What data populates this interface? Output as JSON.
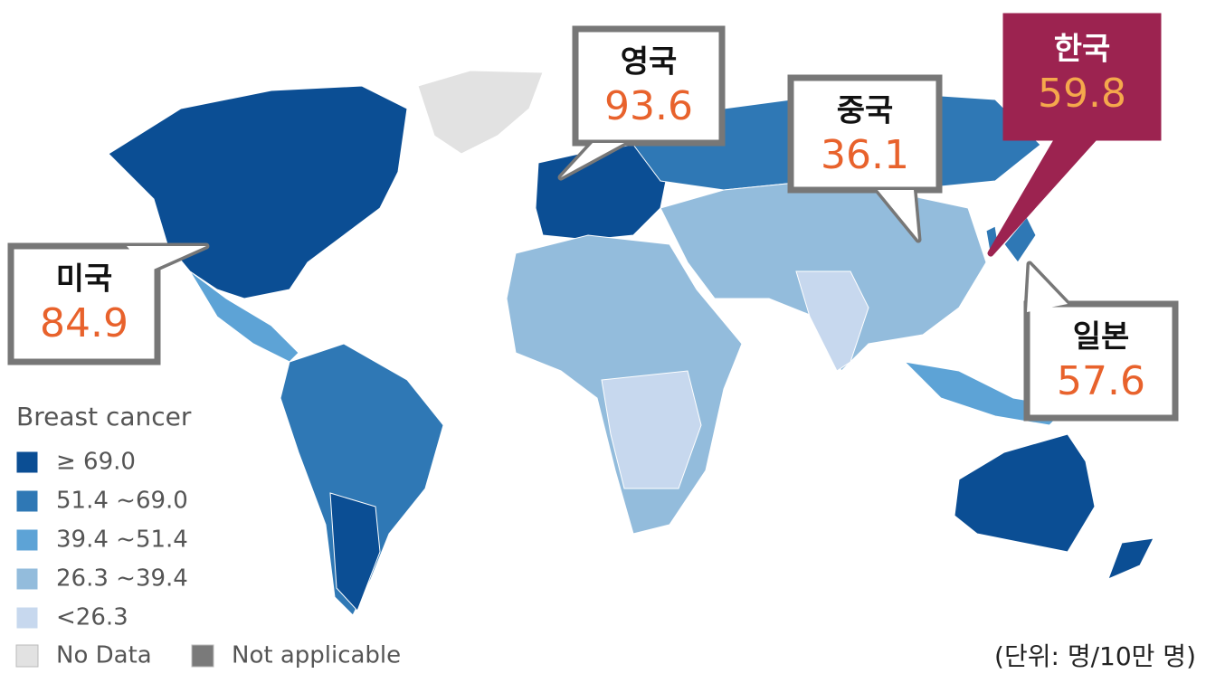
{
  "callouts": [
    {
      "country": "미국",
      "value": 84.9
    },
    {
      "country": "영국",
      "value": 93.6
    },
    {
      "country": "중국",
      "value": 36.1
    },
    {
      "country": "한국",
      "value": 59.8
    },
    {
      "country": "일본",
      "value": 57.6
    }
  ],
  "legend": {
    "title": "Breast cancer",
    "items": [
      {
        "label": "≥ 69.0",
        "color": "#0b4e94"
      },
      {
        "label": "51.4 ~69.0",
        "color": "#2f78b5"
      },
      {
        "label": "39.4 ~51.4",
        "color": "#5da3d6"
      },
      {
        "label": "26.3 ~39.4",
        "color": "#93bcdc"
      },
      {
        "label": "<26.3",
        "color": "#c7d8ee"
      }
    ],
    "other": [
      {
        "label": "No Data",
        "color": "#e2e2e2"
      },
      {
        "label": "Not applicable",
        "color": "#7a7a7a"
      }
    ]
  },
  "unit": "(단위: 명/10만 명)"
}
